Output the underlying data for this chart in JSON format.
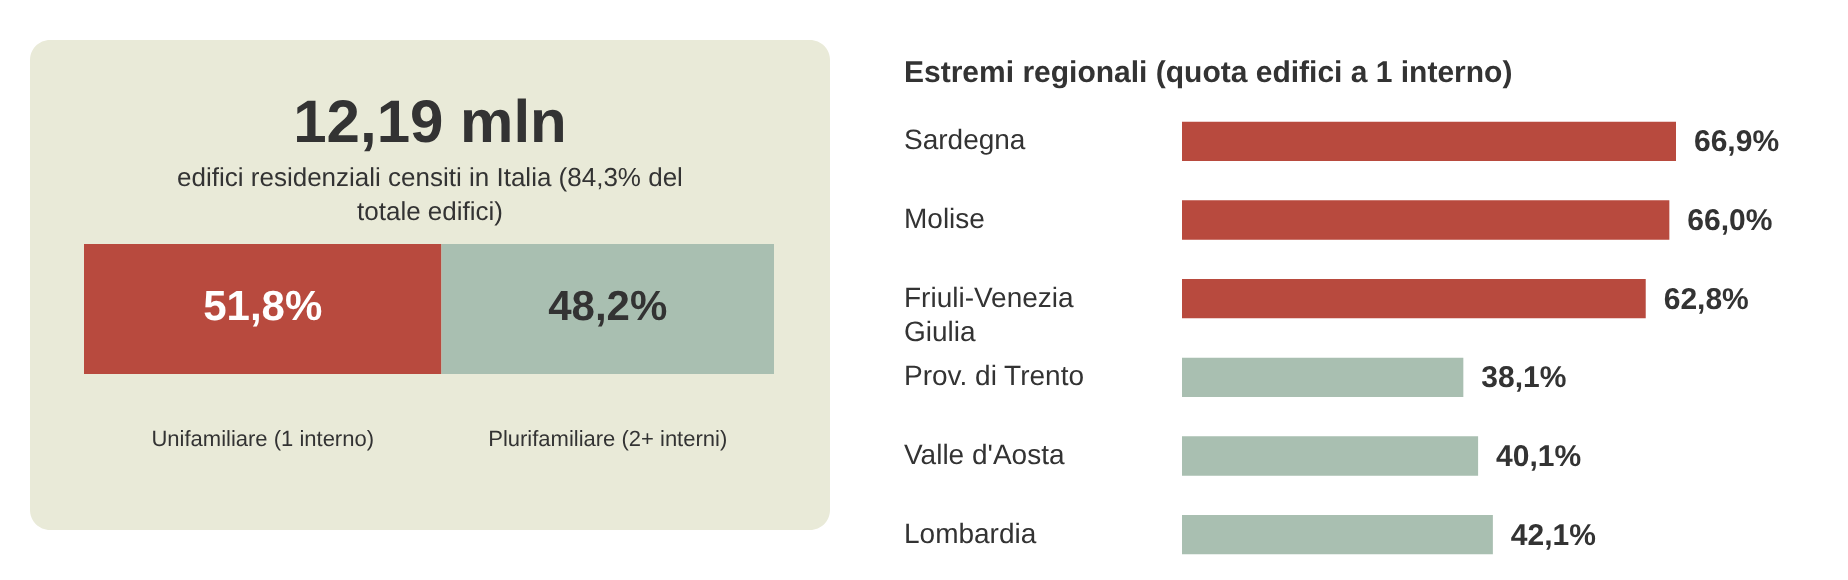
{
  "chart_data": [
    {
      "type": "bar",
      "orientation": "horizontal",
      "stacked": true,
      "title": "12,19 mln",
      "subtitle": "edifici residenziali censiti in Italia (84,3% del totale edifici)",
      "categories": [
        null
      ],
      "series": [
        {
          "name": "Unifamiliare (1 interno)",
          "color": "#b84a3e",
          "values": [
            51.8
          ],
          "value_labels": [
            "51,8%"
          ]
        },
        {
          "name": "Plurifamiliare (2+ interni)",
          "color": "#a9bfb1",
          "values": [
            48.2
          ],
          "value_labels": [
            "48,2%"
          ]
        }
      ]
    },
    {
      "type": "bar",
      "orientation": "horizontal",
      "title": "Estremi regionali (quota edifici a 1 interno)",
      "categories": [
        "Sardegna",
        "Molise",
        "Friuli-Venezia Giulia",
        "Prov. di Trento",
        "Valle d'Aosta",
        "Lombardia"
      ],
      "values": [
        66.9,
        66.0,
        62.8,
        38.1,
        40.1,
        42.1
      ],
      "colors": [
        "#b84a3e",
        "#b84a3e",
        "#b84a3e",
        "#a9bfb1",
        "#a9bfb1",
        "#a9bfb1"
      ],
      "value_labels": [
        "66,9%",
        "66,0%",
        "62,8%",
        "38,1%",
        "40,1%",
        "42,1%"
      ]
    }
  ]
}
